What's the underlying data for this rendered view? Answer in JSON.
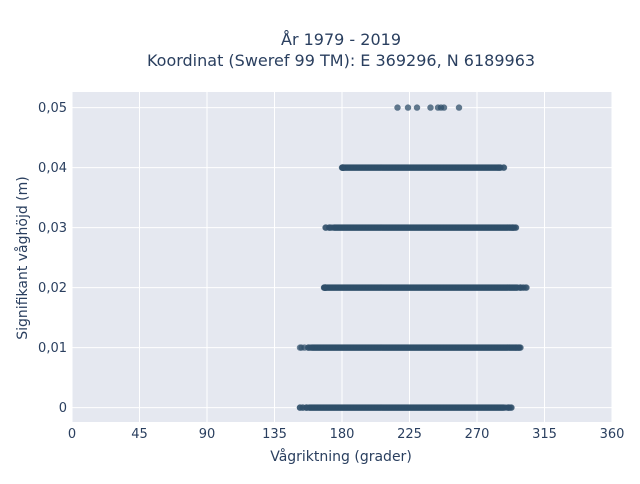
{
  "chart_data": {
    "type": "scatter",
    "title_lines": [
      "År 1979 - 2019",
      "Koordinat (Sweref 99 TM): E 369296, N 6189963"
    ],
    "xlabel": "Vågriktning (grader)",
    "ylabel": "Signifikant våghöjd (m)",
    "xlim": [
      0,
      360
    ],
    "ylim": [
      -0.0024,
      0.0526
    ],
    "x_ticks": [
      0,
      45,
      90,
      135,
      180,
      225,
      270,
      315,
      360
    ],
    "x_tick_labels": [
      "0",
      "45",
      "90",
      "135",
      "180",
      "225",
      "270",
      "315",
      "360"
    ],
    "y_ticks": [
      0,
      0.01,
      0.02,
      0.03,
      0.04,
      0.05
    ],
    "y_tick_labels": [
      "0",
      "0,01",
      "0,02",
      "0,03",
      "0,04",
      "0,05"
    ],
    "grid": true,
    "legend": "none",
    "marker_color": "#2f4f69",
    "plot_bg": "#e5e8f0",
    "bands": [
      {
        "y": 0,
        "x_min": 152,
        "x_max": 293,
        "dense_min": 158,
        "dense_max": 288
      },
      {
        "y": 0.01,
        "x_min": 152,
        "x_max": 299,
        "dense_min": 160,
        "dense_max": 296
      },
      {
        "y": 0.02,
        "x_min": 168,
        "x_max": 303,
        "dense_min": 169,
        "dense_max": 297
      },
      {
        "y": 0.03,
        "x_min": 169,
        "x_max": 296,
        "dense_min": 175,
        "dense_max": 293
      },
      {
        "y": 0.04,
        "x_min": 180,
        "x_max": 288,
        "dense_min": 181,
        "dense_max": 284
      }
    ],
    "sparse_points": [
      {
        "x": 217,
        "y": 0.05
      },
      {
        "x": 224,
        "y": 0.05
      },
      {
        "x": 230,
        "y": 0.05
      },
      {
        "x": 239,
        "y": 0.05
      },
      {
        "x": 244,
        "y": 0.05
      },
      {
        "x": 246,
        "y": 0.05
      },
      {
        "x": 248,
        "y": 0.05
      },
      {
        "x": 258,
        "y": 0.05
      }
    ]
  }
}
